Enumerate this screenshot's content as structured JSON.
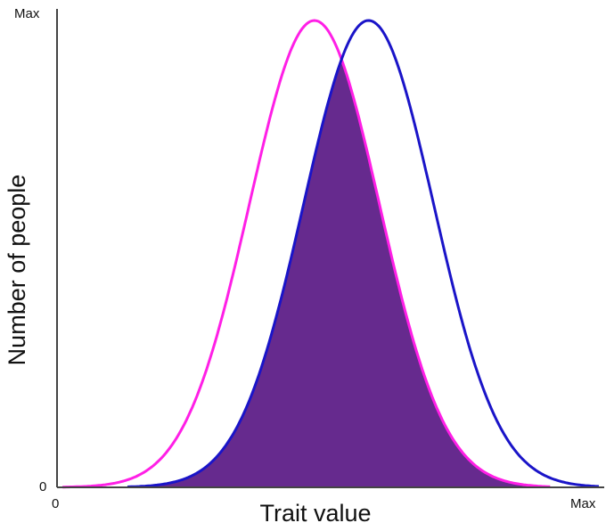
{
  "chart_data": {
    "type": "area",
    "xlabel": "Trait value",
    "ylabel": "Number of people",
    "x_ticks": [
      "0",
      "Max"
    ],
    "y_ticks": [
      "0",
      "Max"
    ],
    "xlim": [
      0,
      1
    ],
    "ylim": [
      0,
      1
    ],
    "series": [
      {
        "color": "#ff1fe6",
        "curve": "normal",
        "mean": 0.475,
        "sd": 0.12,
        "x_start": 0.01,
        "x_end": 0.91
      },
      {
        "color": "#1a14c8",
        "curve": "normal",
        "mean": 0.575,
        "sd": 0.12,
        "x_start": 0.13,
        "x_end": 1.0
      }
    ],
    "overlap_fill": "#662a8e",
    "grid": false,
    "legend": "none"
  }
}
